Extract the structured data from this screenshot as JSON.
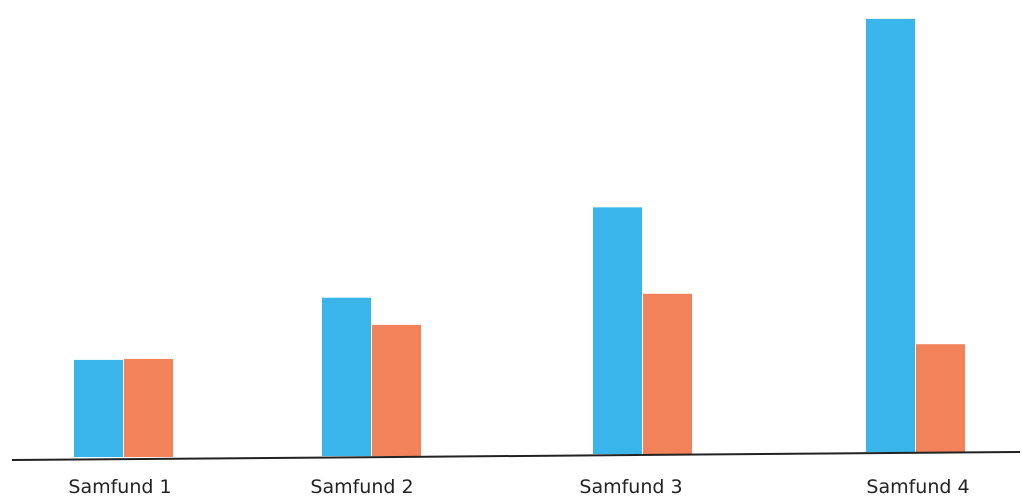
{
  "chart_data": {
    "type": "bar",
    "categories": [
      "Samfund 1",
      "Samfund 2",
      "Samfund 3",
      "Samfund 4"
    ],
    "series": [
      {
        "values": [
          100,
          163,
          254,
          446
        ]
      },
      {
        "values": [
          101,
          135,
          165,
          111
        ]
      }
    ],
    "ylim": [
      0,
      450
    ],
    "grid": false,
    "colors": [
      "#3ab5ea",
      "#f2825a"
    ],
    "axis_color": "#222222"
  }
}
